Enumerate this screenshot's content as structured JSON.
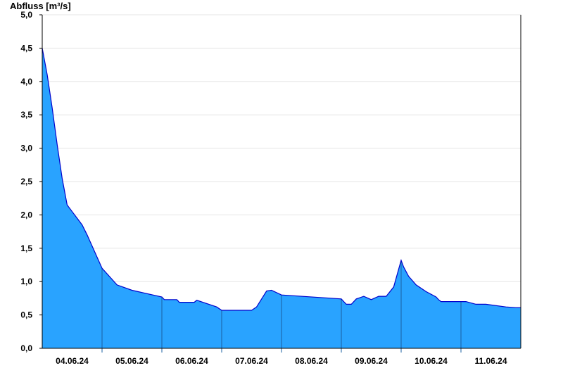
{
  "chart_data": {
    "type": "area",
    "title": "",
    "ylabel": "Abfluss [m³/s]",
    "xlabel": "",
    "ylim": [
      0,
      5
    ],
    "grid": true,
    "legend": "none",
    "colors": {
      "fill": "#29a3ff",
      "line": "#0000cc",
      "day_divider": "#1a5fa0",
      "grid": "#e6e6e6"
    },
    "yticks": [
      {
        "value": 0.0,
        "label": "0,0"
      },
      {
        "value": 0.5,
        "label": "0,5"
      },
      {
        "value": 1.0,
        "label": "1,0"
      },
      {
        "value": 1.5,
        "label": "1,5"
      },
      {
        "value": 2.0,
        "label": "2,0"
      },
      {
        "value": 2.5,
        "label": "2,5"
      },
      {
        "value": 3.0,
        "label": "3,0"
      },
      {
        "value": 3.5,
        "label": "3,5"
      },
      {
        "value": 4.0,
        "label": "4,0"
      },
      {
        "value": 4.5,
        "label": "4,5"
      },
      {
        "value": 5.0,
        "label": "5,0"
      }
    ],
    "xrange": [
      "2024-06-03T12:00",
      "2024-06-11T12:00"
    ],
    "day_boundaries": [
      "2024-06-04T12:00",
      "2024-06-05T12:00",
      "2024-06-06T12:00",
      "2024-06-07T12:00",
      "2024-06-08T12:00",
      "2024-06-09T12:00",
      "2024-06-10T12:00",
      "2024-06-11T12:00"
    ],
    "xticks": [
      {
        "x": "2024-06-04T00:00",
        "label": "04.06.24"
      },
      {
        "x": "2024-06-05T00:00",
        "label": "05.06.24"
      },
      {
        "x": "2024-06-06T00:00",
        "label": "06.06.24"
      },
      {
        "x": "2024-06-07T00:00",
        "label": "07.06.24"
      },
      {
        "x": "2024-06-08T00:00",
        "label": "08.06.24"
      },
      {
        "x": "2024-06-09T00:00",
        "label": "09.06.24"
      },
      {
        "x": "2024-06-10T00:00",
        "label": "10.06.24"
      },
      {
        "x": "2024-06-11T00:00",
        "label": "11.06.24"
      }
    ],
    "series": [
      {
        "x": [
          "2024-06-03T12:00",
          "2024-06-03T14:00",
          "2024-06-03T16:00",
          "2024-06-03T18:00",
          "2024-06-03T20:00",
          "2024-06-03T22:00",
          "2024-06-04T00:00",
          "2024-06-04T02:00",
          "2024-06-04T04:00",
          "2024-06-04T06:00",
          "2024-06-04T09:00",
          "2024-06-04T12:00",
          "2024-06-04T18:00",
          "2024-06-05T00:00",
          "2024-06-05T06:00",
          "2024-06-05T12:00",
          "2024-06-05T13:00",
          "2024-06-05T18:00",
          "2024-06-05T19:00",
          "2024-06-06T01:00",
          "2024-06-06T02:00",
          "2024-06-06T10:00",
          "2024-06-06T12:00",
          "2024-06-06T18:00",
          "2024-06-06T20:00",
          "2024-06-07T00:00",
          "2024-06-07T02:00",
          "2024-06-07T06:00",
          "2024-06-07T08:00",
          "2024-06-07T12:00",
          "2024-06-08T12:00",
          "2024-06-08T13:00",
          "2024-06-08T14:00",
          "2024-06-08T16:00",
          "2024-06-08T18:00",
          "2024-06-08T21:00",
          "2024-06-09T00:00",
          "2024-06-09T03:00",
          "2024-06-09T06:00",
          "2024-06-09T09:00",
          "2024-06-09T12:00",
          "2024-06-09T13:00",
          "2024-06-09T15:00",
          "2024-06-09T18:00",
          "2024-06-09T22:00",
          "2024-06-10T02:00",
          "2024-06-10T03:00",
          "2024-06-10T04:00",
          "2024-06-10T05:00",
          "2024-06-10T06:00",
          "2024-06-10T08:00",
          "2024-06-10T11:00",
          "2024-06-10T14:00",
          "2024-06-10T18:00",
          "2024-06-10T22:00",
          "2024-06-11T06:00",
          "2024-06-11T10:00",
          "2024-06-11T12:00"
        ],
        "values": [
          4.5,
          4.1,
          3.6,
          3.05,
          2.55,
          2.15,
          2.05,
          1.95,
          1.85,
          1.7,
          1.45,
          1.2,
          0.95,
          0.87,
          0.82,
          0.77,
          0.73,
          0.73,
          0.69,
          0.69,
          0.72,
          0.62,
          0.57,
          0.57,
          0.57,
          0.57,
          0.62,
          0.86,
          0.87,
          0.8,
          0.74,
          0.7,
          0.66,
          0.66,
          0.74,
          0.78,
          0.73,
          0.78,
          0.78,
          0.92,
          1.32,
          1.22,
          1.08,
          0.95,
          0.85,
          0.77,
          0.73,
          0.7,
          0.7,
          0.7,
          0.7,
          0.7,
          0.7,
          0.66,
          0.66,
          0.62,
          0.61,
          0.61
        ]
      }
    ]
  }
}
